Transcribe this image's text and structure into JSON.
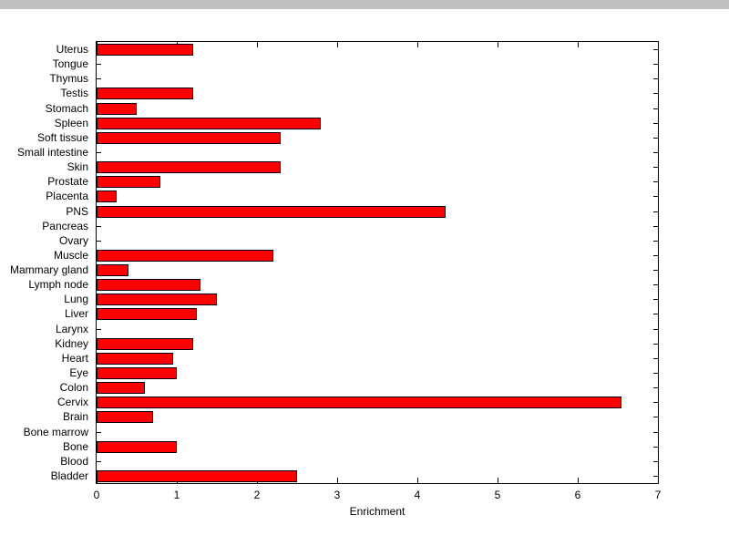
{
  "figure": {
    "background": "#ffffff",
    "top_edge_color": "#c0c0c0"
  },
  "chart_data": {
    "type": "bar",
    "orientation": "horizontal",
    "title": "",
    "xlabel": "Enrichment",
    "ylabel": "",
    "xlim": [
      0,
      7
    ],
    "xticks": [
      0,
      1,
      2,
      3,
      4,
      5,
      6,
      7
    ],
    "grid": false,
    "legend": "none",
    "bar_color": "#ff0000",
    "bar_edge_color": "#000000",
    "categories_top_to_bottom": [
      "Uterus",
      "Tongue",
      "Thymus",
      "Testis",
      "Stomach",
      "Spleen",
      "Soft tissue",
      "Small intestine",
      "Skin",
      "Prostate",
      "Placenta",
      "PNS",
      "Pancreas",
      "Ovary",
      "Muscle",
      "Mammary gland",
      "Lymph node",
      "Lung",
      "Liver",
      "Larynx",
      "Kidney",
      "Heart",
      "Eye",
      "Colon",
      "Cervix",
      "Brain",
      "Bone marrow",
      "Bone",
      "Blood",
      "Bladder"
    ],
    "values": [
      1.2,
      0,
      0,
      1.2,
      0.5,
      2.8,
      2.3,
      0,
      2.3,
      0.8,
      0.25,
      4.35,
      0,
      0,
      2.2,
      0.4,
      1.3,
      1.5,
      1.25,
      0,
      1.2,
      0.95,
      1.0,
      0.6,
      6.55,
      0.7,
      0,
      1.0,
      0,
      2.5
    ]
  }
}
